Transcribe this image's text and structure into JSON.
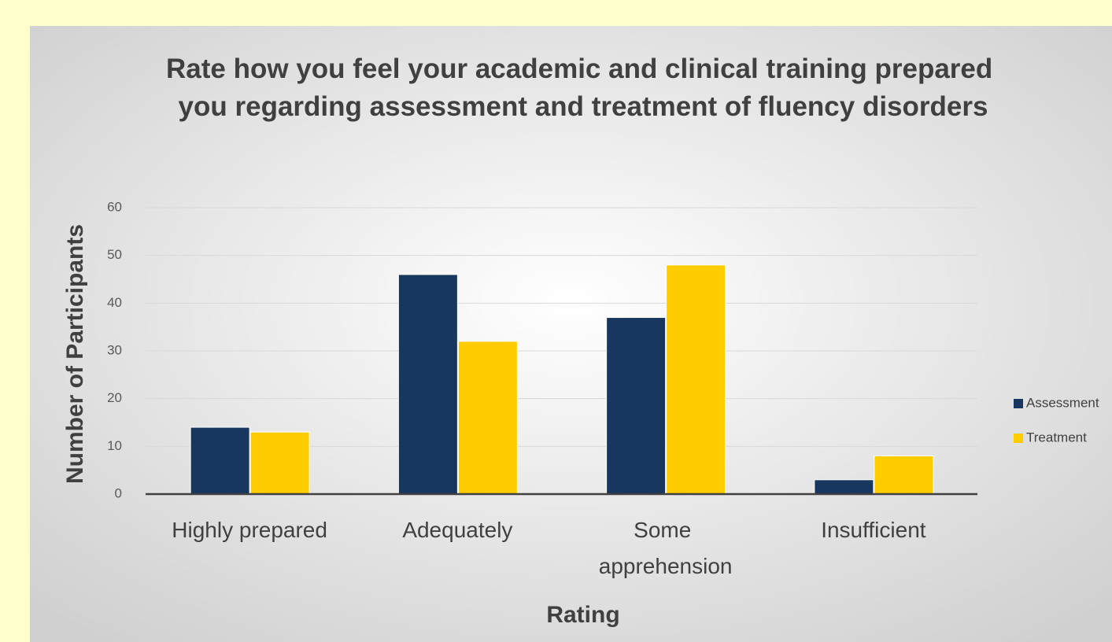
{
  "chart_data": {
    "type": "bar",
    "title": "Rate how you feel your academic and clinical training prepared you regarding assessment and treatment of fluency disorders",
    "x_label": "Rating",
    "y_label": "Number of Participants",
    "categories": [
      "Highly prepared",
      "Adequately",
      "Some apprehension",
      "Insufficient"
    ],
    "series": [
      {
        "name": "Assessment",
        "color": "#17375e",
        "values": [
          14,
          46,
          37,
          3
        ]
      },
      {
        "name": "Treatment",
        "color": "#ffcc00",
        "values": [
          13,
          32,
          48,
          8
        ]
      }
    ],
    "ylim": [
      0,
      60
    ],
    "yticks": [
      0,
      10,
      20,
      30,
      40,
      50,
      60
    ],
    "grid": true,
    "legend": "right"
  }
}
